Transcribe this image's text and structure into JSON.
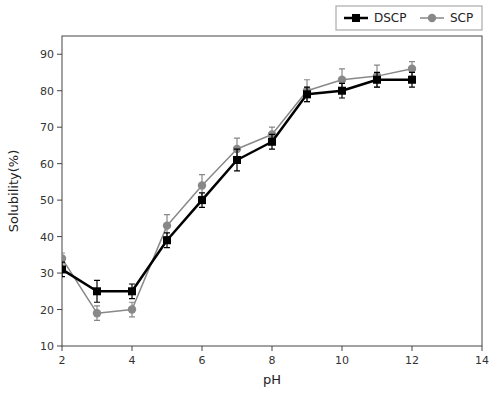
{
  "chart_data": {
    "type": "line",
    "xlabel": "pH",
    "ylabel": "Solubility(%)",
    "x": [
      2,
      3,
      4,
      5,
      6,
      7,
      8,
      9,
      10,
      11,
      12
    ],
    "series": [
      {
        "name": "DSCP",
        "color": "#000000",
        "marker": "square",
        "values": [
          31,
          25,
          25,
          39,
          50,
          61,
          66,
          79,
          80,
          83,
          83
        ],
        "error": [
          2,
          3,
          2,
          2,
          2,
          3,
          2,
          2,
          2,
          2,
          2
        ]
      },
      {
        "name": "SCP",
        "color": "#888888",
        "marker": "circle",
        "values": [
          34,
          19,
          20,
          43,
          54,
          64,
          68,
          80,
          83,
          84,
          86
        ],
        "error": [
          1.5,
          2,
          2,
          3,
          3,
          3,
          2,
          3,
          3,
          3,
          2
        ]
      }
    ],
    "xlim": [
      2,
      14
    ],
    "ylim": [
      10,
      95
    ],
    "xticks": [
      2,
      4,
      6,
      8,
      10,
      12,
      14
    ],
    "yticks": [
      10,
      20,
      30,
      40,
      50,
      60,
      70,
      80,
      90
    ],
    "grid": false,
    "legend": "upper right"
  }
}
